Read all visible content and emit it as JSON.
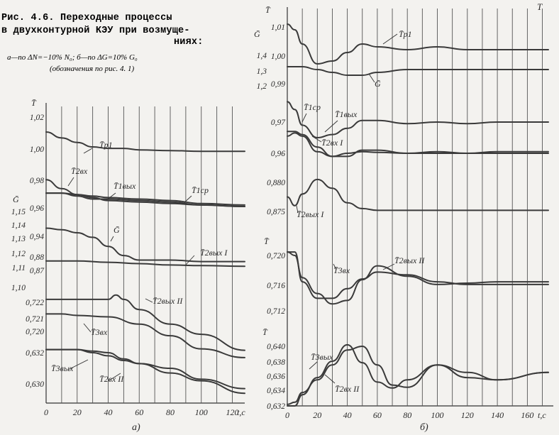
{
  "caption": {
    "line1": "Рис.   4.6.   Переходные   процессы",
    "line2": "в двухконтурной КЭУ при возмуще-",
    "line3": "ниях:",
    "line4": "а—по  ΔN=−10% N₀;  б—по  ΔG=10% G₀",
    "line5": "(обозначения  по рис. 4. 1)"
  },
  "corner_mark": "Т",
  "chart_data": [
    {
      "id": "a",
      "type": "line",
      "panel_label": "а)",
      "xlabel": "t,c",
      "x_ticks": [
        "0",
        "20",
        "40",
        "60",
        "80",
        "100",
        "120"
      ],
      "xlim": [
        0,
        128
      ],
      "ylabels": [
        "T̄",
        "Ḡ"
      ],
      "y_ticks": [
        "1,02",
        "1,00",
        "0,98",
        "0,96",
        "0,94",
        "0,88",
        "0,87",
        "0,722",
        "0,721",
        "0,720",
        "0,632",
        "0,630"
      ],
      "g_ticks": [
        "1,15",
        "1,14",
        "1,13",
        "1,12",
        "1,11",
        "1,10"
      ],
      "series": [
        {
          "name": "T̄р1",
          "x": [
            0,
            10,
            20,
            30,
            40,
            50,
            60,
            80,
            100,
            128
          ],
          "y": [
            1.01,
            1.006,
            1.003,
            1.0,
            0.999,
            0.999,
            0.998,
            0.9975,
            0.997,
            0.997
          ]
        },
        {
          "name": "T̄2вх",
          "x": [
            0,
            10,
            20,
            30,
            40,
            60,
            80,
            100,
            128
          ],
          "y": [
            0.978,
            0.972,
            0.968,
            0.966,
            0.964,
            0.963,
            0.962,
            0.961,
            0.96
          ]
        },
        {
          "name": "T̄1вых",
          "x": [
            0,
            10,
            20,
            30,
            40,
            60,
            80,
            100,
            128
          ],
          "y": [
            0.969,
            0.969,
            0.967,
            0.965,
            0.965,
            0.964,
            0.963,
            0.961,
            0.96
          ]
        },
        {
          "name": "T̄1ср",
          "x": [
            0,
            10,
            20,
            30,
            40,
            60,
            80,
            100,
            128
          ],
          "y": [
            0.969,
            0.969,
            0.968,
            0.967,
            0.966,
            0.965,
            0.964,
            0.962,
            0.961
          ]
        },
        {
          "name": "Ḡ",
          "x": [
            0,
            10,
            20,
            30,
            40,
            50,
            60,
            80,
            100,
            128
          ],
          "y": [
            1.139,
            1.138,
            1.136,
            1.133,
            1.127,
            1.121,
            1.118,
            1.118,
            1.117,
            1.117
          ]
        },
        {
          "name": "T̄2вых I",
          "x": [
            0,
            10,
            20,
            40,
            60,
            80,
            100,
            128
          ],
          "y": [
            0.877,
            0.877,
            0.877,
            0.876,
            0.875,
            0.874,
            0.8735,
            0.873
          ]
        },
        {
          "name": "T̄2вых II",
          "x": [
            0,
            10,
            20,
            30,
            40,
            45,
            50,
            60,
            80,
            100,
            128
          ],
          "y": [
            0.7222,
            0.7222,
            0.7222,
            0.7222,
            0.7222,
            0.7225,
            0.7222,
            0.7215,
            0.7205,
            0.7198,
            0.7187
          ]
        },
        {
          "name": "T̄3вх",
          "x": [
            0,
            10,
            20,
            40,
            60,
            80,
            100,
            128
          ],
          "y": [
            0.7212,
            0.7212,
            0.7211,
            0.721,
            0.7205,
            0.7197,
            0.7188,
            0.7182
          ]
        },
        {
          "name": "T̄3вых",
          "x": [
            0,
            10,
            20,
            30,
            40,
            50,
            60,
            80,
            100,
            128
          ],
          "y": [
            0.6322,
            0.6322,
            0.6322,
            0.6321,
            0.632,
            0.6316,
            0.6313,
            0.631,
            0.6303,
            0.6297
          ]
        },
        {
          "name": "T̄2вх II",
          "x": [
            0,
            10,
            20,
            30,
            40,
            50,
            60,
            80,
            100,
            128
          ],
          "y": [
            0.6322,
            0.6322,
            0.6322,
            0.632,
            0.6318,
            0.6315,
            0.6313,
            0.6307,
            0.6302,
            0.6294
          ]
        }
      ]
    },
    {
      "id": "b",
      "type": "line",
      "panel_label": "б)",
      "xlabel": "t,c",
      "x_ticks": [
        "0",
        "20",
        "40",
        "60",
        "80",
        "100",
        "120",
        "140",
        "160"
      ],
      "xlim": [
        0,
        174
      ],
      "subplots": [
        {
          "ylabels": [
            "T̄",
            "Ḡ"
          ],
          "y_ticks": [
            "1,01",
            "1,00",
            "0,99"
          ],
          "g_ticks": [
            "1,4",
            "1,3",
            "1,2"
          ],
          "series": [
            {
              "name": "T̄р1",
              "x": [
                0,
                5,
                10,
                20,
                30,
                40,
                50,
                60,
                80,
                100,
                120,
                140,
                174
              ],
              "y": [
                1.011,
                1.009,
                1.004,
                0.997,
                0.998,
                1.001,
                1.004,
                1.003,
                1.002,
                1.003,
                1.002,
                1.002,
                1.002
              ]
            },
            {
              "name": "Ḡ",
              "x": [
                0,
                10,
                20,
                30,
                40,
                50,
                60,
                80,
                100,
                120,
                140,
                174
              ],
              "y": [
                0.996,
                0.996,
                0.995,
                0.994,
                0.993,
                0.993,
                0.994,
                0.995,
                0.995,
                0.995,
                0.995,
                0.995
              ]
            }
          ]
        },
        {
          "y_ticks": [
            "0,97",
            "0,96"
          ],
          "series": [
            {
              "name": "T̄1ср",
              "x": [
                0,
                5,
                10,
                20,
                30,
                40,
                50,
                60,
                80,
                100,
                120,
                140,
                174
              ],
              "y": [
                0.9765,
                0.974,
                0.969,
                0.965,
                0.966,
                0.968,
                0.9705,
                0.9705,
                0.9695,
                0.97,
                0.9695,
                0.97,
                0.97
              ]
            },
            {
              "name": "T̄1вых",
              "x": [
                0,
                5,
                10,
                20,
                30,
                40,
                50,
                60,
                80,
                100,
                120,
                140,
                174
              ],
              "y": [
                0.967,
                0.967,
                0.966,
                0.962,
                0.959,
                0.959,
                0.961,
                0.961,
                0.96,
                0.9605,
                0.96,
                0.9605,
                0.9605
              ]
            },
            {
              "name": "T̄2вх I",
              "x": [
                0,
                5,
                10,
                20,
                30,
                40,
                50,
                60,
                80,
                100,
                120,
                140,
                174
              ],
              "y": [
                0.9655,
                0.9665,
                0.9655,
                0.9605,
                0.959,
                0.96,
                0.9605,
                0.9603,
                0.96,
                0.96,
                0.96,
                0.96,
                0.96
              ]
            }
          ]
        },
        {
          "y_ticks": [
            "0,880",
            "0,875"
          ],
          "series": [
            {
              "name": "T̄2вых I",
              "x": [
                0,
                5,
                10,
                20,
                30,
                40,
                50,
                60,
                80,
                100,
                120,
                140,
                174
              ],
              "y": [
                0.8775,
                0.876,
                0.878,
                0.8805,
                0.879,
                0.8765,
                0.8755,
                0.8752,
                0.8752,
                0.8752,
                0.8752,
                0.8752,
                0.8752
              ]
            }
          ]
        },
        {
          "ylabels": [
            "T̄"
          ],
          "y_ticks": [
            "0,720",
            "0,716",
            "0,712"
          ],
          "series": [
            {
              "name": "T̄3вх",
              "x": [
                0,
                5,
                10,
                20,
                30,
                40,
                50,
                60,
                80,
                100,
                120,
                140,
                174
              ],
              "y": [
                0.7205,
                0.7205,
                0.7162,
                0.7138,
                0.7138,
                0.7152,
                0.7166,
                0.7176,
                0.7172,
                0.7162,
                0.7158,
                0.7158,
                0.7158
              ]
            },
            {
              "name": "T̄2вых II",
              "x": [
                0,
                5,
                10,
                20,
                30,
                40,
                50,
                60,
                80,
                100,
                120,
                140,
                174
              ],
              "y": [
                0.7205,
                0.72,
                0.7168,
                0.7145,
                0.713,
                0.7135,
                0.7165,
                0.7185,
                0.717,
                0.7158,
                0.716,
                0.7162,
                0.7162
              ]
            }
          ]
        },
        {
          "ylabels": [
            "T̄"
          ],
          "y_ticks": [
            "0,640",
            "0,638",
            "0,636",
            "0,634",
            "0,632"
          ],
          "series": [
            {
              "name": "T̄3вых",
              "x": [
                0,
                5,
                10,
                20,
                30,
                40,
                50,
                60,
                70,
                80,
                100,
                120,
                140,
                174
              ],
              "y": [
                0.632,
                0.632,
                0.6335,
                0.6358,
                0.638,
                0.6402,
                0.6378,
                0.6352,
                0.6344,
                0.6355,
                0.6375,
                0.6358,
                0.6355,
                0.6365
              ]
            },
            {
              "name": "T̄2вх II",
              "x": [
                0,
                5,
                10,
                20,
                30,
                40,
                50,
                60,
                70,
                80,
                100,
                120,
                140,
                174
              ],
              "y": [
                0.6322,
                0.6325,
                0.6338,
                0.6355,
                0.6375,
                0.6395,
                0.64,
                0.6375,
                0.6348,
                0.6345,
                0.6375,
                0.6365,
                0.6355,
                0.6365
              ]
            }
          ]
        }
      ]
    }
  ]
}
